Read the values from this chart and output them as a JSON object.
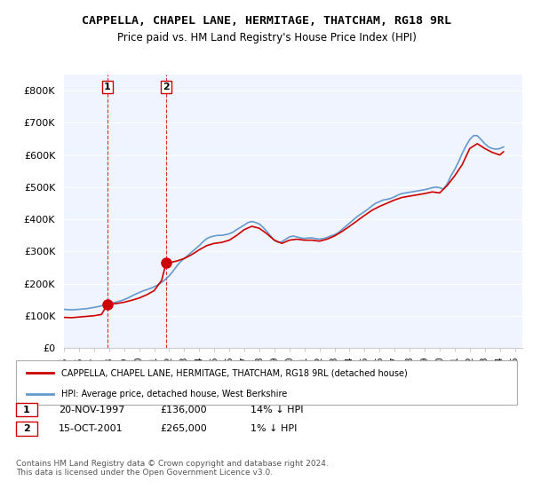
{
  "title": "CAPPELLA, CHAPEL LANE, HERMITAGE, THATCHAM, RG18 9RL",
  "subtitle": "Price paid vs. HM Land Registry's House Price Index (HPI)",
  "ylabel": "",
  "background_color": "#ffffff",
  "plot_bg_color": "#f0f4ff",
  "grid_color": "#ffffff",
  "ylim": [
    0,
    850000
  ],
  "yticks": [
    0,
    100000,
    200000,
    300000,
    400000,
    500000,
    600000,
    700000,
    800000
  ],
  "ytick_labels": [
    "£0",
    "£100K",
    "£200K",
    "£300K",
    "£400K",
    "£500K",
    "£600K",
    "£700K",
    "£800K"
  ],
  "hpi_color": "#6699cc",
  "price_color": "#cc0000",
  "marker_color": "#cc0000",
  "vline_color": "#cc0000",
  "purchase1_date": 1997.9,
  "purchase1_price": 136000,
  "purchase1_label": "1",
  "purchase2_date": 2001.8,
  "purchase2_price": 265000,
  "purchase2_label": "2",
  "legend_line1": "CAPPELLA, CHAPEL LANE, HERMITAGE, THATCHAM, RG18 9RL (detached house)",
  "legend_line2": "HPI: Average price, detached house, West Berkshire",
  "table_row1": [
    "1",
    "20-NOV-1997",
    "£136,000",
    "14% ↓ HPI"
  ],
  "table_row2": [
    "2",
    "15-OCT-2001",
    "£265,000",
    "1% ↓ HPI"
  ],
  "footnote": "Contains HM Land Registry data © Crown copyright and database right 2024.\nThis data is licensed under the Open Government Licence v3.0.",
  "hpi_data": {
    "years": [
      1995.0,
      1995.25,
      1995.5,
      1995.75,
      1996.0,
      1996.25,
      1996.5,
      1996.75,
      1997.0,
      1997.25,
      1997.5,
      1997.75,
      1998.0,
      1998.25,
      1998.5,
      1998.75,
      1999.0,
      1999.25,
      1999.5,
      1999.75,
      2000.0,
      2000.25,
      2000.5,
      2000.75,
      2001.0,
      2001.25,
      2001.5,
      2001.75,
      2002.0,
      2002.25,
      2002.5,
      2002.75,
      2003.0,
      2003.25,
      2003.5,
      2003.75,
      2004.0,
      2004.25,
      2004.5,
      2004.75,
      2005.0,
      2005.25,
      2005.5,
      2005.75,
      2006.0,
      2006.25,
      2006.5,
      2006.75,
      2007.0,
      2007.25,
      2007.5,
      2007.75,
      2008.0,
      2008.25,
      2008.5,
      2008.75,
      2009.0,
      2009.25,
      2009.5,
      2009.75,
      2010.0,
      2010.25,
      2010.5,
      2010.75,
      2011.0,
      2011.25,
      2011.5,
      2011.75,
      2012.0,
      2012.25,
      2012.5,
      2012.75,
      2013.0,
      2013.25,
      2013.5,
      2013.75,
      2014.0,
      2014.25,
      2014.5,
      2014.75,
      2015.0,
      2015.25,
      2015.5,
      2015.75,
      2016.0,
      2016.25,
      2016.5,
      2016.75,
      2017.0,
      2017.25,
      2017.5,
      2017.75,
      2018.0,
      2018.25,
      2018.5,
      2018.75,
      2019.0,
      2019.25,
      2019.5,
      2019.75,
      2020.0,
      2020.25,
      2020.5,
      2020.75,
      2021.0,
      2021.25,
      2021.5,
      2021.75,
      2022.0,
      2022.25,
      2022.5,
      2022.75,
      2023.0,
      2023.25,
      2023.5,
      2023.75,
      2024.0,
      2024.25
    ],
    "values": [
      120000,
      119000,
      118500,
      119000,
      120000,
      121000,
      122000,
      124000,
      126000,
      128000,
      131000,
      134000,
      137000,
      140000,
      143000,
      146000,
      150000,
      155000,
      161000,
      167000,
      172000,
      177000,
      181000,
      185000,
      190000,
      196000,
      204000,
      213000,
      224000,
      238000,
      254000,
      268000,
      278000,
      288000,
      298000,
      308000,
      318000,
      330000,
      340000,
      345000,
      348000,
      350000,
      350000,
      352000,
      355000,
      360000,
      368000,
      375000,
      382000,
      390000,
      393000,
      390000,
      385000,
      375000,
      362000,
      348000,
      335000,
      328000,
      330000,
      338000,
      345000,
      348000,
      345000,
      342000,
      340000,
      342000,
      342000,
      340000,
      338000,
      340000,
      343000,
      348000,
      352000,
      358000,
      368000,
      378000,
      388000,
      398000,
      408000,
      416000,
      424000,
      432000,
      442000,
      450000,
      455000,
      460000,
      462000,
      465000,
      470000,
      476000,
      480000,
      482000,
      484000,
      486000,
      488000,
      490000,
      492000,
      495000,
      498000,
      500000,
      498000,
      494000,
      510000,
      535000,
      555000,
      578000,
      605000,
      628000,
      648000,
      660000,
      660000,
      648000,
      635000,
      625000,
      620000,
      618000,
      620000,
      625000
    ]
  },
  "price_data": {
    "years": [
      1995.0,
      1995.5,
      1996.0,
      1996.5,
      1997.0,
      1997.5,
      1997.9,
      1998.0,
      1998.5,
      1999.0,
      1999.5,
      2000.0,
      2000.5,
      2001.0,
      2001.5,
      2001.8,
      2002.0,
      2002.5,
      2003.0,
      2003.5,
      2004.0,
      2004.5,
      2005.0,
      2005.5,
      2006.0,
      2006.5,
      2007.0,
      2007.5,
      2008.0,
      2008.5,
      2009.0,
      2009.5,
      2010.0,
      2010.5,
      2011.0,
      2011.5,
      2012.0,
      2012.5,
      2013.0,
      2013.5,
      2014.0,
      2014.5,
      2015.0,
      2015.5,
      2016.0,
      2016.5,
      2017.0,
      2017.5,
      2018.0,
      2018.5,
      2019.0,
      2019.5,
      2020.0,
      2020.5,
      2021.0,
      2021.5,
      2022.0,
      2022.5,
      2023.0,
      2023.5,
      2024.0,
      2024.25
    ],
    "values": [
      95000,
      94000,
      96000,
      98000,
      100000,
      104000,
      136000,
      136000,
      138000,
      142000,
      148000,
      155000,
      165000,
      178000,
      210000,
      265000,
      265000,
      270000,
      278000,
      290000,
      305000,
      318000,
      325000,
      328000,
      335000,
      350000,
      368000,
      378000,
      372000,
      355000,
      335000,
      325000,
      335000,
      338000,
      335000,
      335000,
      332000,
      338000,
      348000,
      362000,
      378000,
      395000,
      412000,
      428000,
      440000,
      450000,
      460000,
      468000,
      472000,
      476000,
      480000,
      485000,
      482000,
      505000,
      535000,
      570000,
      620000,
      635000,
      620000,
      608000,
      600000,
      610000
    ]
  }
}
